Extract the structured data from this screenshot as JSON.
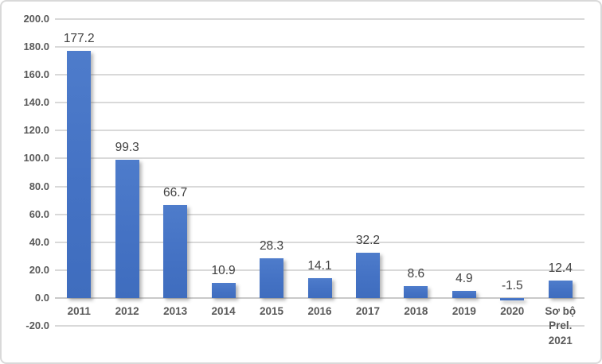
{
  "chart_data": {
    "type": "bar",
    "title": "",
    "xlabel": "",
    "ylabel": "",
    "categories": [
      "2011",
      "2012",
      "2013",
      "2014",
      "2015",
      "2016",
      "2017",
      "2018",
      "2019",
      "2020",
      "Sơ bộ Prel. 2021"
    ],
    "category_display": [
      [
        "2011"
      ],
      [
        "2012"
      ],
      [
        "2013"
      ],
      [
        "2014"
      ],
      [
        "2015"
      ],
      [
        "2016"
      ],
      [
        "2017"
      ],
      [
        "2018"
      ],
      [
        "2019"
      ],
      [
        "2020"
      ],
      [
        "Sơ bộ",
        "Prel.",
        "2021"
      ]
    ],
    "values": [
      177.2,
      99.3,
      66.7,
      10.9,
      28.3,
      14.1,
      32.2,
      8.6,
      4.9,
      -1.5,
      12.4
    ],
    "data_labels": [
      "177.2",
      "99.3",
      "66.7",
      "10.9",
      "28.3",
      "14.1",
      "32.2",
      "8.6",
      "4.9",
      "-1.5",
      "12.4"
    ],
    "yticks": [
      200,
      180,
      160,
      140,
      120,
      100,
      80,
      60,
      40,
      20,
      0,
      -20
    ],
    "ytick_labels": [
      "200.0",
      "180.0",
      "160.0",
      "140.0",
      "120.0",
      "100.0",
      "80.0",
      "60.0",
      "40.0",
      "20.0",
      "0.0",
      "-20.0"
    ],
    "ylim": [
      -20,
      200
    ],
    "grid": "horizontal",
    "legend": "none",
    "colors": {
      "bar": "#4472C4",
      "gridline": "#D9D9D9",
      "axis_line": "#C9C9C9",
      "axis_text": "#595959",
      "data_label_text": "#404040",
      "chart_border": "#D9D9D9",
      "background": "#FFFFFF"
    }
  }
}
